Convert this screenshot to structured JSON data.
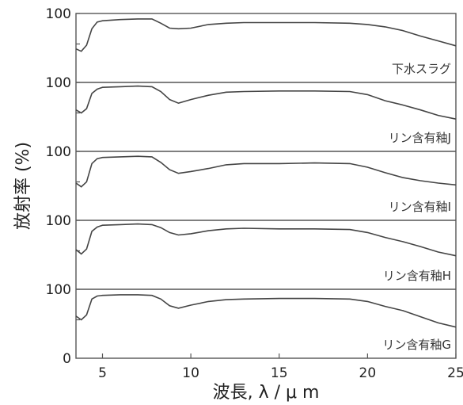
{
  "chart_data": {
    "type": "line",
    "xlabel": "波長, λ / μ m",
    "ylabel": "放射率 (%)",
    "xlim": [
      3.5,
      25
    ],
    "x_ticks": [
      5,
      10,
      15,
      20,
      25
    ],
    "x_tick_labels": [
      "5",
      "10",
      "15",
      "20",
      "25"
    ],
    "ylim": [
      0,
      100
    ],
    "y_tick_labels": [
      "100",
      "100",
      "100",
      "100",
      "100",
      "0"
    ],
    "series": [
      {
        "name": "下水スラグ",
        "x": [
          3.5,
          3.8,
          4.1,
          4.4,
          4.7,
          5,
          6,
          7,
          7.8,
          8.3,
          8.8,
          9.3,
          10,
          11,
          12,
          13,
          15,
          17,
          19,
          20,
          21,
          22,
          23,
          24,
          25
        ],
        "y": [
          42,
          38,
          48,
          75,
          86,
          88,
          90,
          91,
          91,
          84,
          76,
          75,
          76,
          82,
          84,
          85,
          85,
          85,
          84,
          82,
          78,
          72,
          63,
          55,
          47
        ]
      },
      {
        "name": "リン含有釉J",
        "x": [
          3.5,
          3.8,
          4.1,
          4.4,
          4.7,
          5,
          6,
          7,
          7.8,
          8.3,
          8.8,
          9.3,
          10,
          11,
          12,
          13,
          15,
          17,
          19,
          20,
          21,
          22,
          23,
          24,
          25
        ],
        "y": [
          55,
          50,
          57,
          82,
          89,
          92,
          93,
          94,
          93,
          85,
          72,
          66,
          72,
          79,
          84,
          85,
          86,
          86,
          85,
          80,
          70,
          63,
          55,
          46,
          40
        ]
      },
      {
        "name": "リン含有釉I",
        "x": [
          3.5,
          3.8,
          4.1,
          4.4,
          4.7,
          5,
          6,
          7,
          7.8,
          8.3,
          8.8,
          9.3,
          10,
          11,
          12,
          13,
          15,
          17,
          19,
          20,
          21,
          22,
          23,
          24,
          25
        ],
        "y": [
          48,
          42,
          50,
          80,
          88,
          90,
          91,
          92,
          91,
          82,
          70,
          64,
          67,
          72,
          78,
          80,
          80,
          81,
          80,
          74,
          65,
          57,
          52,
          48,
          45
        ]
      },
      {
        "name": "リン含有釉H",
        "x": [
          3.5,
          3.8,
          4.1,
          4.4,
          4.7,
          5,
          6,
          7,
          7.8,
          8.3,
          8.8,
          9.3,
          10,
          11,
          12,
          13,
          15,
          17,
          19,
          20,
          21,
          22,
          23,
          24,
          25
        ],
        "y": [
          52,
          45,
          53,
          82,
          89,
          92,
          93,
          94,
          93,
          88,
          80,
          76,
          78,
          83,
          86,
          87,
          86,
          86,
          85,
          80,
          72,
          65,
          57,
          48,
          42
        ]
      },
      {
        "name": "リン含有釉G",
        "x": [
          3.5,
          3.8,
          4.1,
          4.4,
          4.7,
          5,
          6,
          7,
          7.8,
          8.3,
          8.8,
          9.3,
          10,
          11,
          12,
          13,
          15,
          17,
          19,
          20,
          21,
          22,
          23,
          24,
          25
        ],
        "y": [
          56,
          50,
          58,
          84,
          89,
          90,
          91,
          91,
          90,
          84,
          73,
          69,
          74,
          80,
          83,
          84,
          85,
          85,
          84,
          80,
          72,
          65,
          55,
          45,
          38
        ]
      }
    ],
    "grid": false,
    "legend": "none"
  }
}
